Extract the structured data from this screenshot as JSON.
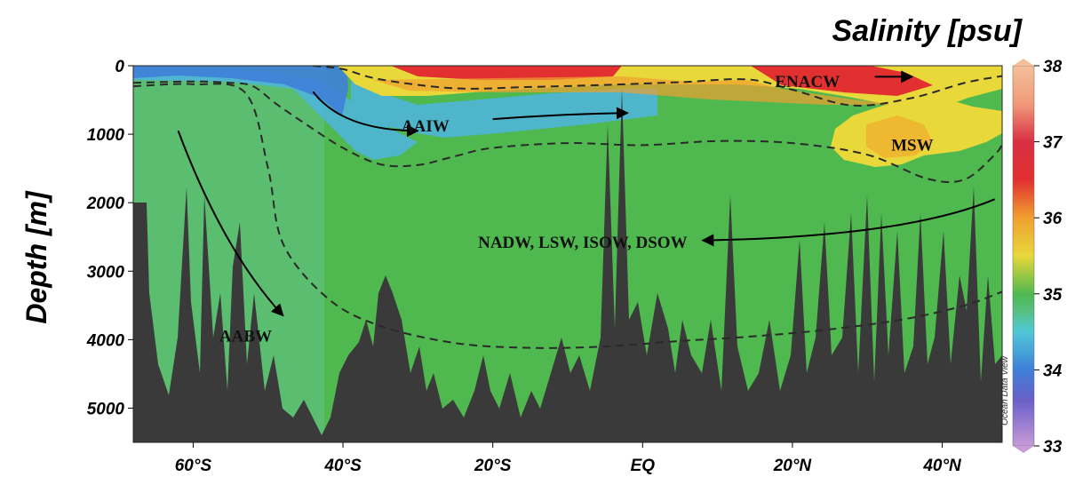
{
  "chart_data": {
    "type": "heatmap",
    "title": "",
    "colorbar_title": "Salinity [psu]",
    "ylabel": "Depth [m]",
    "xlabel": "",
    "x_ticks": [
      {
        "value": -60,
        "label": "60°S"
      },
      {
        "value": -40,
        "label": "40°S"
      },
      {
        "value": -20,
        "label": "20°S"
      },
      {
        "value": 0,
        "label": "EQ"
      },
      {
        "value": 20,
        "label": "20°N"
      },
      {
        "value": 40,
        "label": "40°N"
      }
    ],
    "y_ticks": [
      {
        "value": 0,
        "label": "0"
      },
      {
        "value": 1000,
        "label": "1000"
      },
      {
        "value": 2000,
        "label": "2000"
      },
      {
        "value": 3000,
        "label": "3000"
      },
      {
        "value": 4000,
        "label": "4000"
      },
      {
        "value": 5000,
        "label": "5000"
      }
    ],
    "xlim": [
      -68,
      48
    ],
    "ylim": [
      5500,
      0
    ],
    "colorbar": {
      "range": [
        33,
        38
      ],
      "ticks": [
        {
          "value": 33,
          "label": "33"
        },
        {
          "value": 34,
          "label": "34"
        },
        {
          "value": 35,
          "label": "35"
        },
        {
          "value": 36,
          "label": "36"
        },
        {
          "value": 37,
          "label": "37"
        },
        {
          "value": 38,
          "label": "38"
        }
      ],
      "stops": [
        {
          "value": 33.0,
          "color": "#c89ad8"
        },
        {
          "value": 33.6,
          "color": "#6a5fc8"
        },
        {
          "value": 34.0,
          "color": "#3f7fd8"
        },
        {
          "value": 34.5,
          "color": "#4fc8d8"
        },
        {
          "value": 34.75,
          "color": "#58c08a"
        },
        {
          "value": 35.0,
          "color": "#4fb84f"
        },
        {
          "value": 35.5,
          "color": "#e8d83a"
        },
        {
          "value": 36.0,
          "color": "#f0a030"
        },
        {
          "value": 36.5,
          "color": "#e23030"
        },
        {
          "value": 37.0,
          "color": "#d82f45"
        },
        {
          "value": 37.5,
          "color": "#f09a7a"
        },
        {
          "value": 38.0,
          "color": "#f4c09a"
        }
      ]
    },
    "water_masses": [
      {
        "label": "ENACW",
        "x": 22,
        "depth": 220
      },
      {
        "label": "AAIW",
        "x": -29,
        "depth": 870
      },
      {
        "label": "MSW",
        "x": 36,
        "depth": 1150
      },
      {
        "label": "NADW, LSW, ISOW, DSOW",
        "x": -8,
        "depth": 2570
      },
      {
        "label": "AABW",
        "x": -53,
        "depth": 3940
      }
    ],
    "flow_arrows": [
      {
        "from": [
          -44,
          380
        ],
        "via": [
          -40,
          950
        ],
        "to": [
          -30,
          950
        ]
      },
      {
        "from": [
          -20,
          780
        ],
        "via": [
          -10,
          700
        ],
        "to": [
          -2,
          690
        ]
      },
      {
        "from": [
          31,
          160
        ],
        "via": [
          33,
          160
        ],
        "to": [
          36,
          160
        ]
      },
      {
        "from": [
          47,
          1950
        ],
        "via": [
          35,
          2500
        ],
        "to": [
          8,
          2550
        ]
      },
      {
        "from": [
          -62,
          950
        ],
        "via": [
          -56,
          2700
        ],
        "to": [
          -48,
          3650
        ]
      }
    ],
    "dashed_boundaries": [
      [
        [
          -68,
          250
        ],
        [
          -60,
          230
        ],
        [
          -55,
          250
        ],
        [
          -52,
          300
        ],
        [
          -49,
          550
        ],
        [
          -45,
          850
        ],
        [
          -40,
          1200
        ],
        [
          -35,
          1440
        ],
        [
          -30,
          1450
        ],
        [
          -25,
          1320
        ],
        [
          -20,
          1200
        ],
        [
          -10,
          1130
        ],
        [
          0,
          1160
        ],
        [
          10,
          1100
        ],
        [
          20,
          1130
        ],
        [
          30,
          1300
        ],
        [
          38,
          1650
        ],
        [
          43,
          1660
        ],
        [
          47,
          1300
        ],
        [
          48,
          1150
        ]
      ],
      [
        [
          -44,
          0
        ],
        [
          -40,
          50
        ],
        [
          -35,
          200
        ],
        [
          -25,
          330
        ],
        [
          -15,
          310
        ],
        [
          -5,
          280
        ],
        [
          5,
          240
        ],
        [
          14,
          200
        ],
        [
          20,
          350
        ],
        [
          28,
          580
        ],
        [
          36,
          470
        ],
        [
          43,
          250
        ],
        [
          48,
          150
        ]
      ],
      [
        [
          -68,
          300
        ],
        [
          -60,
          270
        ],
        [
          -53,
          400
        ],
        [
          -50,
          1500
        ],
        [
          -48,
          2600
        ],
        [
          -42,
          3400
        ],
        [
          -35,
          3800
        ],
        [
          -25,
          4050
        ],
        [
          -15,
          4120
        ],
        [
          -5,
          4100
        ],
        [
          5,
          4020
        ],
        [
          15,
          3950
        ],
        [
          25,
          3850
        ],
        [
          35,
          3700
        ],
        [
          43,
          3500
        ],
        [
          48,
          3300
        ]
      ]
    ],
    "watermark": "Ocean Data View"
  }
}
